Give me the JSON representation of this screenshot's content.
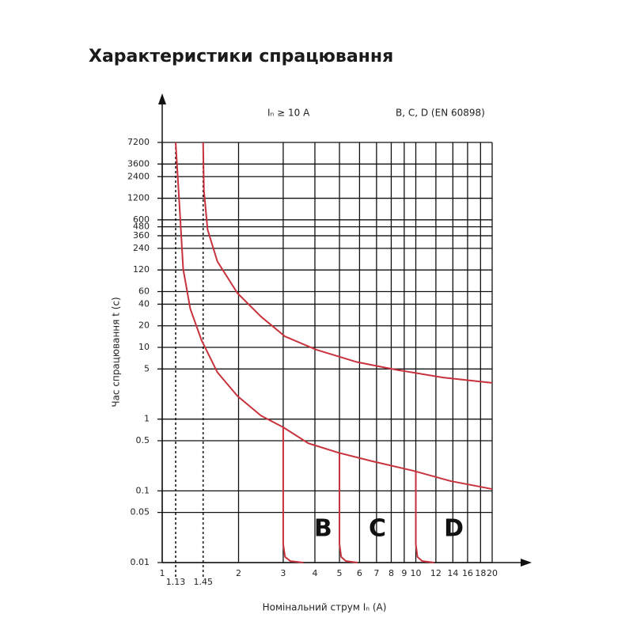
{
  "chart_data": {
    "type": "line",
    "title": "Характеристики спрацювання",
    "annotations": [
      "Iₙ ≥ 10 A",
      "B, C, D (EN 60898)"
    ],
    "x_label": "Номінальний струм Iₙ (А)",
    "y_label": "Час спрацювання t (с)",
    "log_x": true,
    "log_y": true,
    "grid": true,
    "xlim": [
      1,
      20
    ],
    "ylim": [
      0.01,
      7200
    ],
    "xticks": [
      1,
      1.13,
      1.45,
      2,
      3,
      4,
      5,
      6,
      7,
      8,
      9,
      10,
      12,
      14,
      16,
      18,
      20
    ],
    "yticks": [
      0.01,
      0.05,
      0.1,
      0.5,
      1,
      5,
      10,
      20,
      40,
      60,
      120,
      240,
      360,
      480,
      600,
      1200,
      2400,
      3600,
      7200
    ],
    "reference_lines_x": [
      1.13,
      1.45
    ],
    "series": [
      {
        "color": "#c8323c",
        "x": [
          1.13,
          1.18,
          1.21,
          1.29,
          1.43,
          1.65,
          1.98,
          2.45,
          3,
          3.77,
          4.96,
          6.7,
          9.8,
          13.7,
          20
        ],
        "values": [
          7200,
          565,
          123,
          34.6,
          12.5,
          4.5,
          2.1,
          1.12,
          0.77,
          0.46,
          0.34,
          0.26,
          0.19,
          0.137,
          0.106
        ]
      },
      {
        "color": "#c8323c",
        "x": [
          1.45,
          1.46,
          1.51,
          1.65,
          1.98,
          2.45,
          3.05,
          4.06,
          5.8,
          8.3,
          12.8,
          20
        ],
        "values": [
          7200,
          1560,
          438,
          158,
          57,
          26.9,
          14.2,
          9.25,
          6.3,
          4.9,
          3.8,
          3.2
        ]
      },
      {
        "name": "B",
        "color": "#c8323c",
        "x": [
          3,
          3,
          3.05,
          3.2,
          3.6
        ],
        "values": [
          0.77,
          0.018,
          0.012,
          0.0105,
          0.01
        ]
      },
      {
        "name": "C",
        "color": "#c8323c",
        "x": [
          5,
          5,
          5.08,
          5.3,
          5.9
        ],
        "values": [
          0.34,
          0.018,
          0.012,
          0.0105,
          0.01
        ]
      },
      {
        "name": "D",
        "color": "#c8323c",
        "x": [
          10,
          10,
          10.15,
          10.6,
          11.8
        ],
        "values": [
          0.19,
          0.018,
          0.012,
          0.0105,
          0.01
        ]
      }
    ]
  }
}
